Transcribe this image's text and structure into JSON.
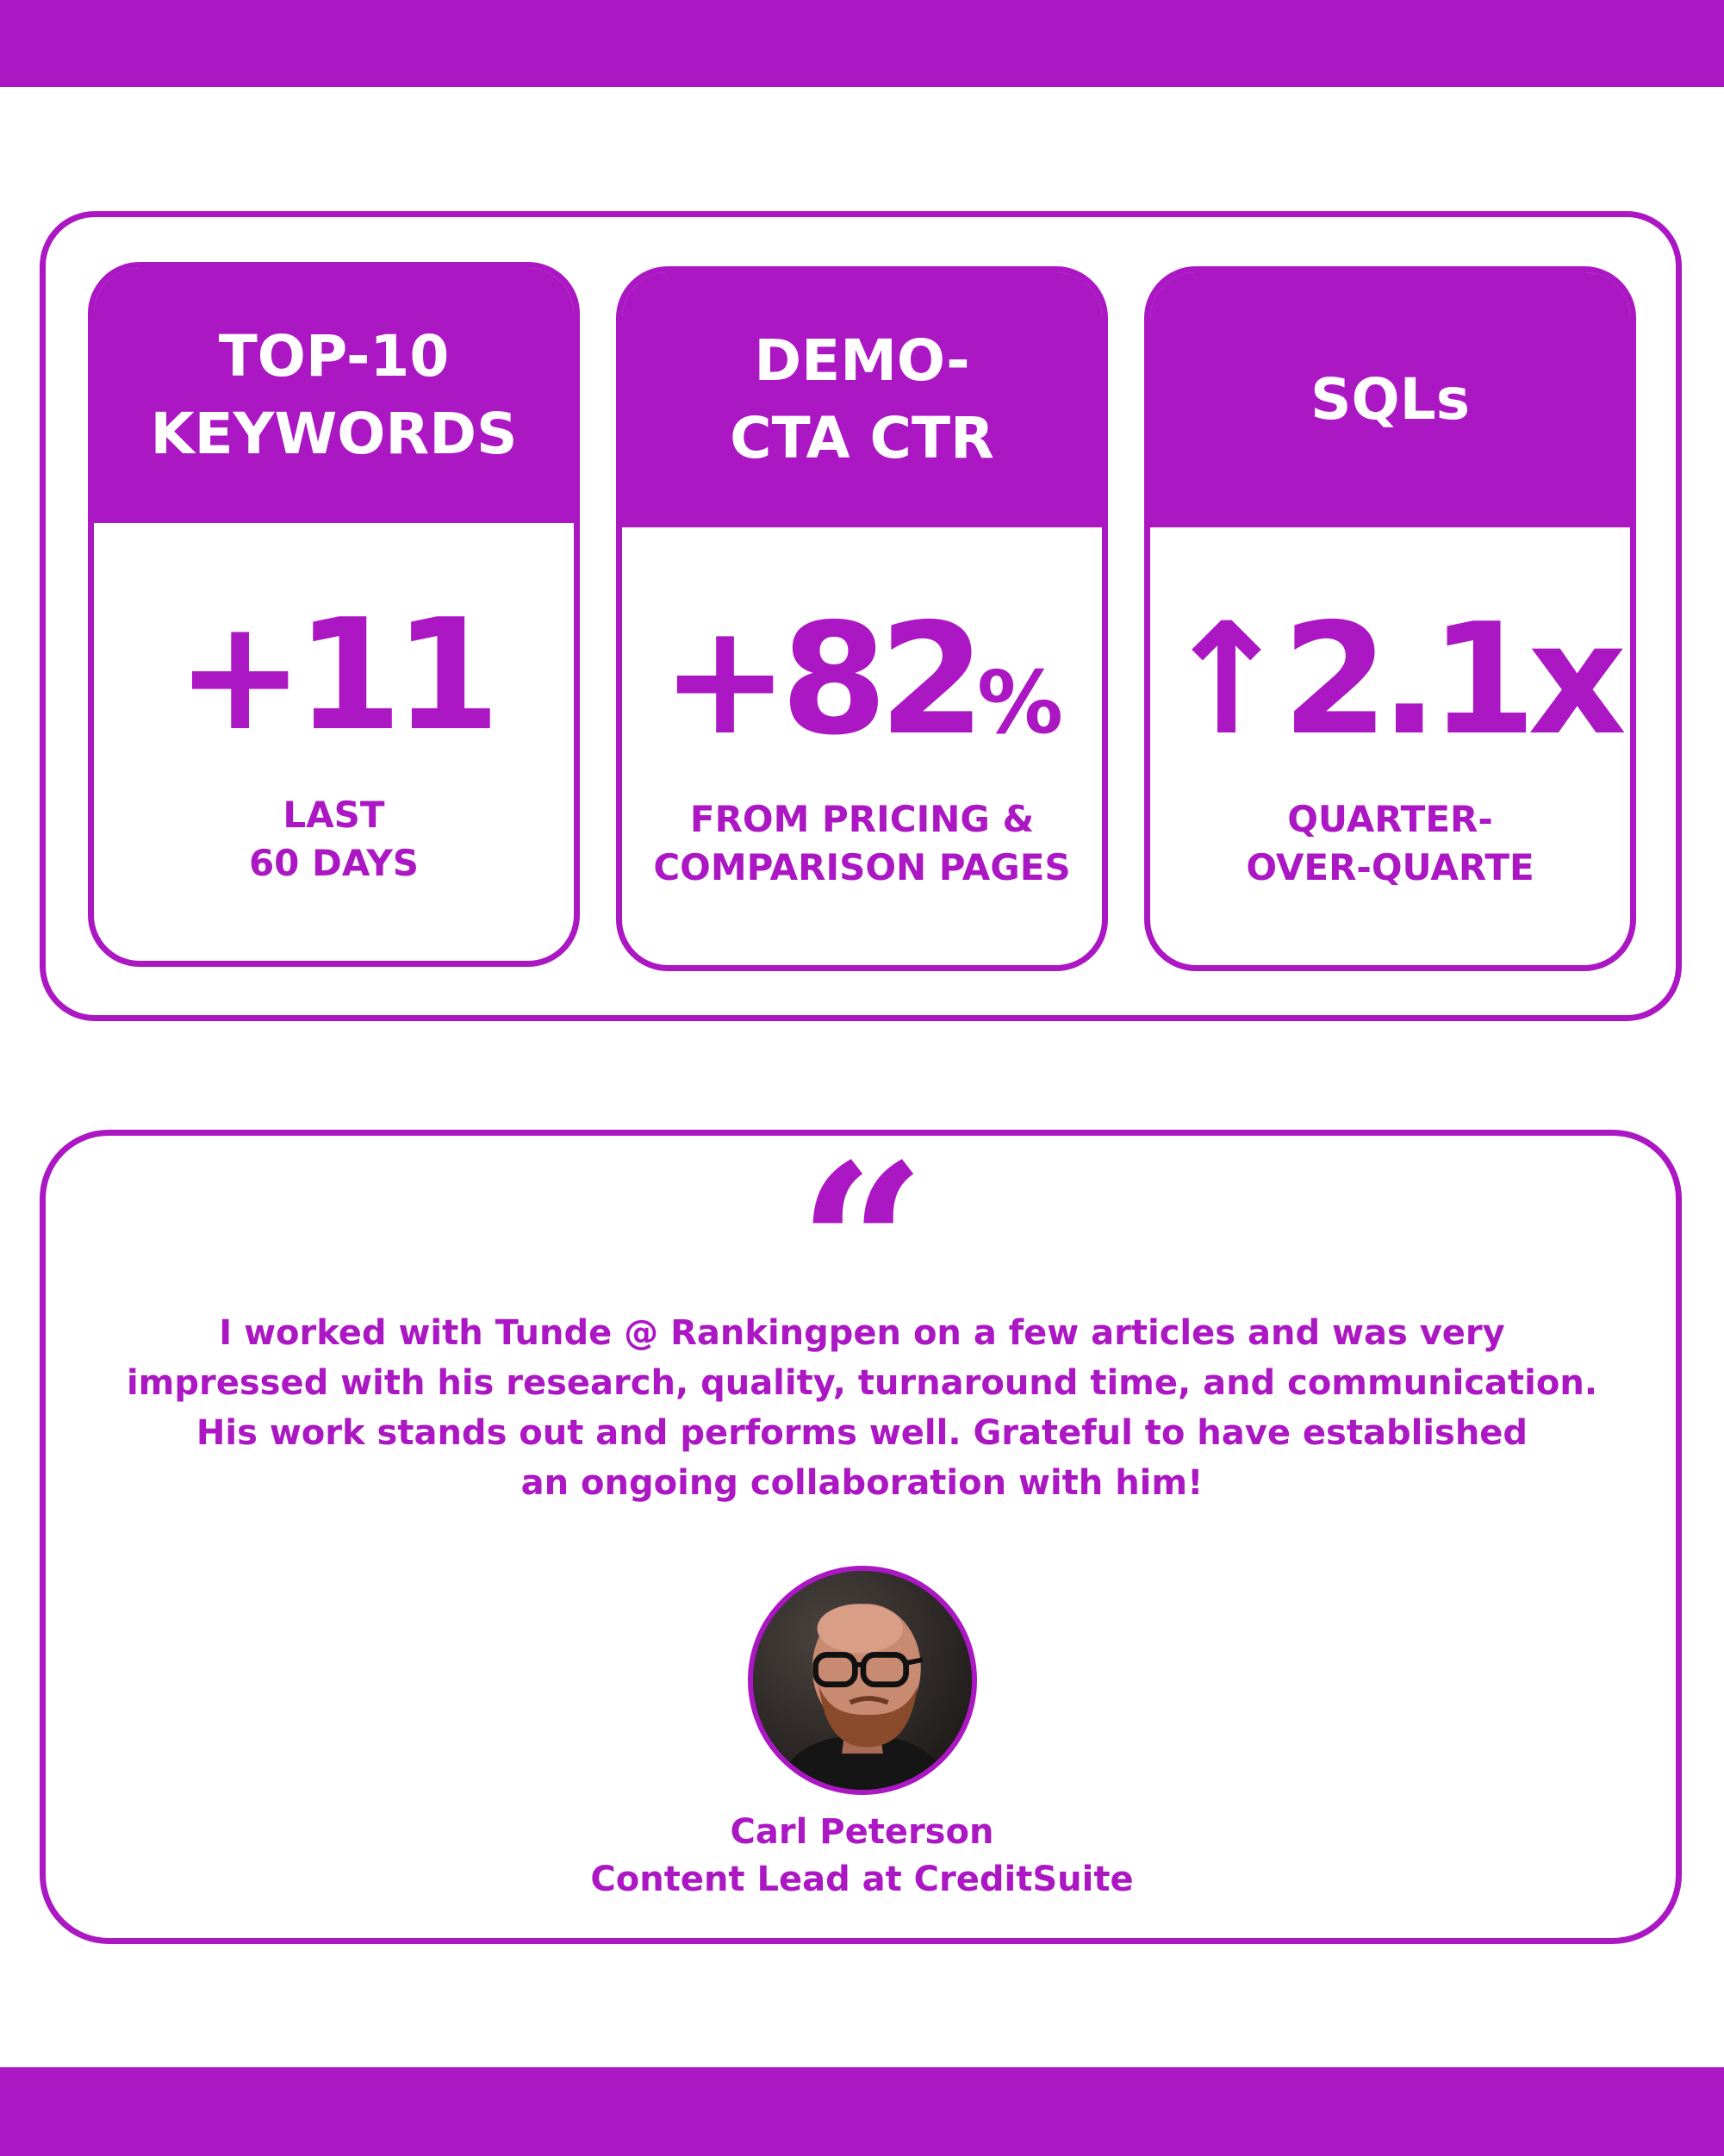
{
  "colors": {
    "accent": "#ac17c4",
    "background": "#ffffff"
  },
  "stats": [
    {
      "title": "TOP-10\nKEYWORDS",
      "value": "+11",
      "unit": "",
      "caption": "LAST\n60 DAYS"
    },
    {
      "title": "DEMO-\nCTA CTR",
      "value": "+82",
      "unit": "%",
      "caption": "FROM PRICING &\nCOMPARISON PAGES"
    },
    {
      "title": "SQLs",
      "value": "↑2.1x",
      "unit": "",
      "caption": "QUARTER-\nOVER-QUARTE"
    }
  ],
  "testimonial": {
    "quote_icon": "opening-quote-icon",
    "lines": [
      "I worked with Tunde @ Rankingpen on a few articles and was very",
      "impressed with his research, quality, turnaround time, and communication.",
      "His work stands out and performs well. Grateful to have established",
      "an ongoing collaboration with him!"
    ],
    "author_name": "Carl Peterson",
    "author_role": "Content Lead at CreditSuite"
  }
}
